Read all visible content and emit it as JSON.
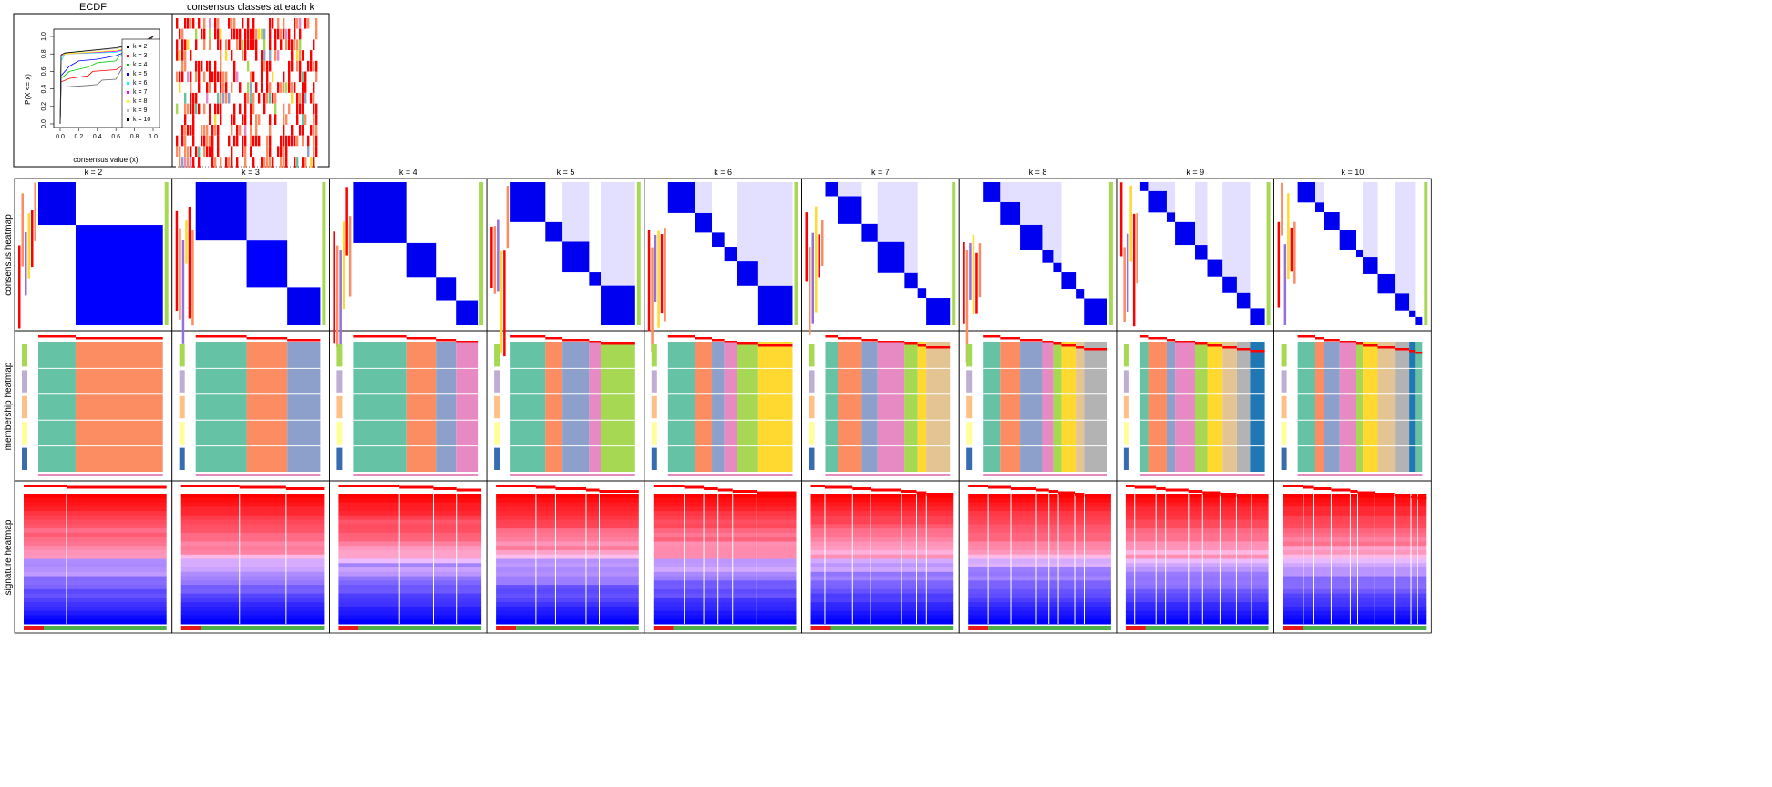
{
  "titles": {
    "ecdf": "ECDF",
    "classes": "consensus classes at each k"
  },
  "row_labels": [
    "consensus heatmap",
    "membership heatmap",
    "signature heatmap"
  ],
  "k_labels": [
    "k = 2",
    "k = 3",
    "k = 4",
    "k = 5",
    "k = 6",
    "k = 7",
    "k = 8",
    "k = 9",
    "k = 10"
  ],
  "chart_data": {
    "type": "line",
    "title": "ECDF",
    "xlabel": "consensus value (x)",
    "ylabel": "P(X <= x)",
    "xlim": [
      0,
      1
    ],
    "ylim": [
      0,
      1
    ],
    "x_ticks": [
      "0.0",
      "0.2",
      "0.4",
      "0.6",
      "0.8",
      "1.0"
    ],
    "y_ticks": [
      "0.0",
      "0.2",
      "0.4",
      "0.6",
      "0.8",
      "1.0"
    ],
    "legend_position": "right",
    "series": [
      {
        "name": "k = 2",
        "color": "#000000",
        "points": [
          [
            0,
            0
          ],
          [
            0.01,
            0.42
          ],
          [
            0.3,
            0.44
          ],
          [
            0.4,
            0.45
          ],
          [
            0.45,
            0.5
          ],
          [
            0.6,
            0.51
          ],
          [
            0.63,
            0.57
          ],
          [
            0.8,
            0.9
          ],
          [
            1,
            1
          ]
        ]
      },
      {
        "name": "k = 3",
        "color": "#FF0000",
        "points": [
          [
            0,
            0
          ],
          [
            0.01,
            0.48
          ],
          [
            0.1,
            0.52
          ],
          [
            0.3,
            0.55
          ],
          [
            0.35,
            0.6
          ],
          [
            0.6,
            0.62
          ],
          [
            0.65,
            0.65
          ],
          [
            0.9,
            0.85
          ],
          [
            1,
            1
          ]
        ]
      },
      {
        "name": "k = 4",
        "color": "#00CD00",
        "points": [
          [
            0,
            0
          ],
          [
            0.01,
            0.52
          ],
          [
            0.1,
            0.6
          ],
          [
            0.3,
            0.65
          ],
          [
            0.4,
            0.7
          ],
          [
            0.6,
            0.72
          ],
          [
            0.63,
            0.77
          ],
          [
            0.9,
            0.88
          ],
          [
            1,
            1
          ]
        ]
      },
      {
        "name": "k = 5",
        "color": "#0000FF",
        "points": [
          [
            0,
            0
          ],
          [
            0.01,
            0.55
          ],
          [
            0.1,
            0.66
          ],
          [
            0.2,
            0.72
          ],
          [
            0.4,
            0.74
          ],
          [
            0.6,
            0.78
          ],
          [
            0.9,
            0.9
          ],
          [
            1,
            1
          ]
        ]
      },
      {
        "name": "k = 6",
        "color": "#00FFFF",
        "points": [
          [
            0,
            0
          ],
          [
            0.01,
            0.72
          ],
          [
            0.05,
            0.8
          ],
          [
            0.6,
            0.82
          ],
          [
            0.9,
            0.9
          ],
          [
            1,
            1
          ]
        ]
      },
      {
        "name": "k = 7",
        "color": "#FF00FF",
        "points": [
          [
            0,
            0
          ],
          [
            0.01,
            0.78
          ],
          [
            0.05,
            0.8
          ],
          [
            0.6,
            0.83
          ],
          [
            0.9,
            0.9
          ],
          [
            1,
            1
          ]
        ]
      },
      {
        "name": "k = 8",
        "color": "#FFFF00",
        "points": [
          [
            0,
            0
          ],
          [
            0.01,
            0.79
          ],
          [
            0.05,
            0.8
          ],
          [
            0.6,
            0.84
          ],
          [
            0.9,
            0.91
          ],
          [
            1,
            1
          ]
        ]
      },
      {
        "name": "k = 9",
        "color": "#BEBEBE",
        "points": [
          [
            0,
            0
          ],
          [
            0.01,
            0.79
          ],
          [
            0.05,
            0.81
          ],
          [
            0.6,
            0.86
          ],
          [
            0.9,
            0.92
          ],
          [
            1,
            1
          ]
        ]
      },
      {
        "name": "k = 10",
        "color": "#000000",
        "points": [
          [
            0,
            0
          ],
          [
            0.01,
            0.79
          ],
          [
            0.05,
            0.81
          ],
          [
            0.6,
            0.87
          ],
          [
            0.9,
            0.93
          ],
          [
            1,
            1
          ]
        ]
      }
    ]
  },
  "colors": {
    "consensus": "#0000FF",
    "signature_high": "#FF0000",
    "signature_low": "#0000FF",
    "classes": [
      "#66C2A5",
      "#FC8D62",
      "#8DA0CB",
      "#E78AC3",
      "#A6D854",
      "#FFD92F",
      "#E5C494",
      "#B3B3B3",
      "#1F78B4"
    ]
  }
}
